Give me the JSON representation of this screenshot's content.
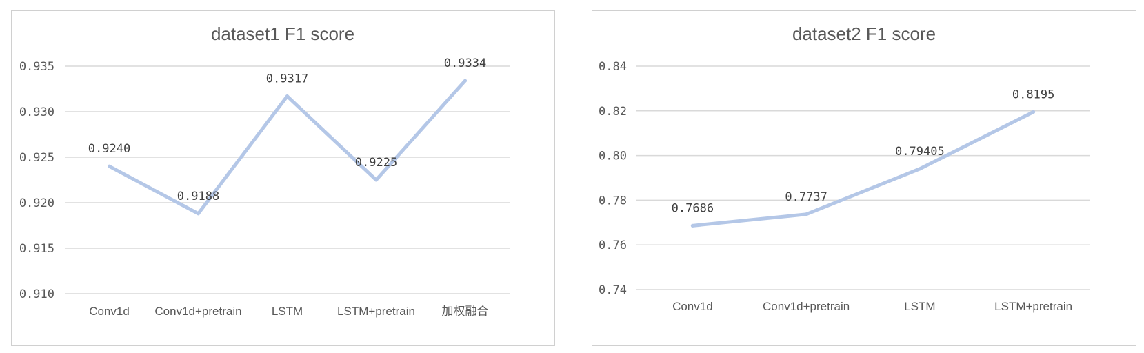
{
  "chart_data": [
    {
      "type": "line",
      "title": "dataset1  F1  score",
      "categories": [
        "Conv1d",
        "Conv1d+pretrain",
        "LSTM",
        "LSTM+pretrain",
        "加权融合"
      ],
      "series": [
        {
          "values": [
            0.924,
            0.9188,
            0.9317,
            0.9225,
            0.9334
          ]
        }
      ],
      "data_labels": [
        "0.9240",
        "0.9188",
        "0.9317",
        "0.9225",
        "0.9334"
      ],
      "yticks": [
        "0.935",
        "0.930",
        "0.925",
        "0.920",
        "0.915",
        "0.910"
      ],
      "ylim": [
        0.91,
        0.935
      ],
      "grid": true,
      "legend": "none",
      "line_color": "#b4c7e7"
    },
    {
      "type": "line",
      "title": "dataset2  F1  score",
      "categories": [
        "Conv1d",
        "Conv1d+pretrain",
        "LSTM",
        "LSTM+pretrain"
      ],
      "series": [
        {
          "values": [
            0.7686,
            0.7737,
            0.79405,
            0.8195
          ]
        }
      ],
      "data_labels": [
        "0.7686",
        "0.7737",
        "0.79405",
        "0.8195"
      ],
      "yticks": [
        "0.84",
        "0.82",
        "0.80",
        "0.78",
        "0.76",
        "0.74"
      ],
      "ylim": [
        0.74,
        0.84
      ],
      "grid": true,
      "legend": "none",
      "line_color": "#b4c7e7"
    }
  ]
}
